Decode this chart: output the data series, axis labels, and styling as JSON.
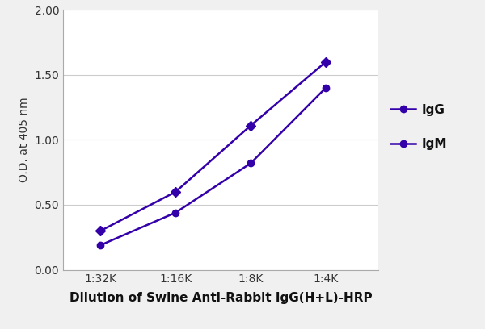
{
  "x_labels": [
    "1:32K",
    "1:16K",
    "1:8K",
    "1:4K"
  ],
  "x_values": [
    1,
    2,
    3,
    4
  ],
  "IgG_values": [
    0.3,
    0.6,
    1.11,
    1.6
  ],
  "IgM_values": [
    0.19,
    0.44,
    0.82,
    1.4
  ],
  "line_color": "#3300AA",
  "marker_IgG": "D",
  "marker_IgM": "o",
  "marker_size": 6,
  "line_width": 1.8,
  "ylabel": "O.D. at 405 nm",
  "xlabel": "Dilution of Swine Anti-Rabbit IgG(H+L)-HRP",
  "ylim": [
    0.0,
    2.0
  ],
  "yticks": [
    0.0,
    0.5,
    1.0,
    1.5,
    2.0
  ],
  "legend_labels": [
    "IgG",
    "IgM"
  ],
  "background_color": "#f0f0f0",
  "plot_bg_color": "#ffffff",
  "grid_color": "#cccccc",
  "ylabel_fontsize": 10,
  "xlabel_fontsize": 11,
  "tick_fontsize": 10,
  "legend_fontsize": 11
}
